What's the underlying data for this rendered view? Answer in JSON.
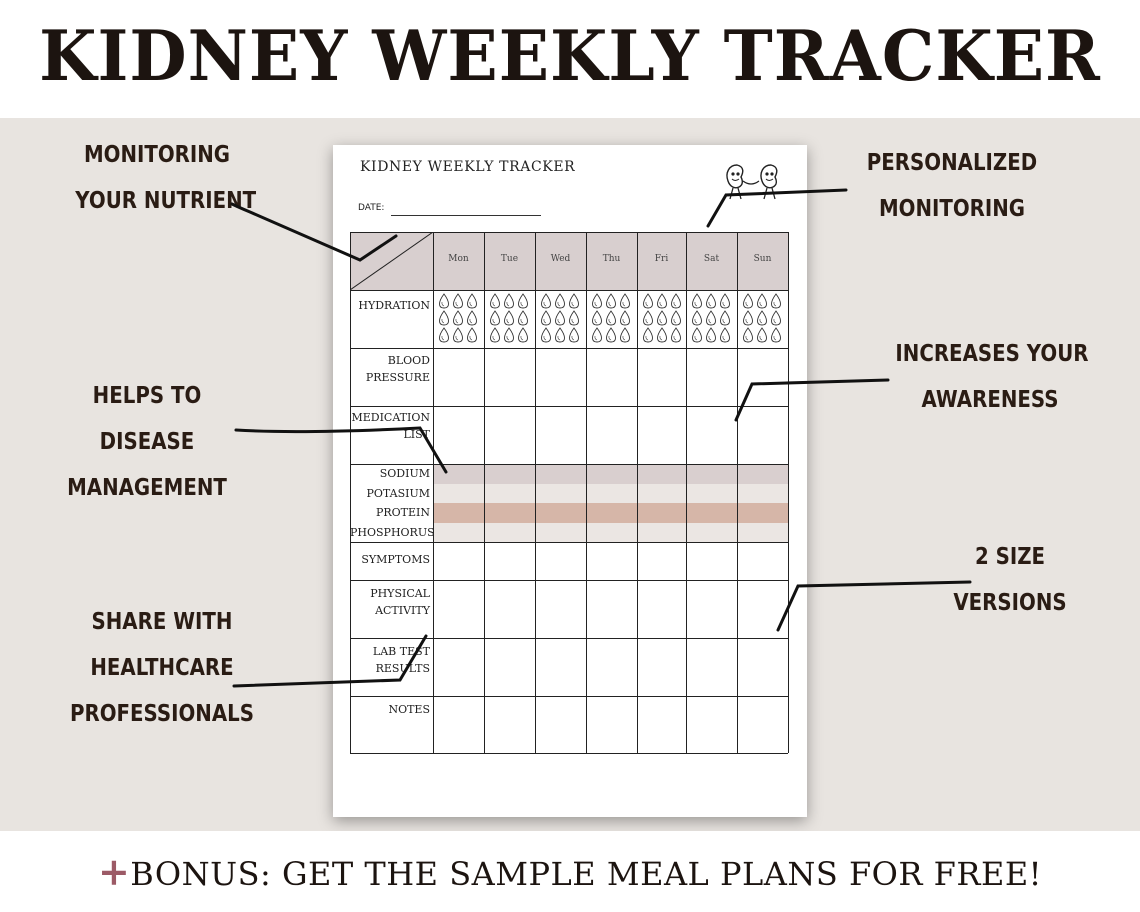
{
  "header": {
    "title": "KIDNEY WEEKLY TRACKER"
  },
  "callouts": {
    "monitoring_nutrient": [
      "MONITORING",
      "YOUR NUTRIENT"
    ],
    "personalized": [
      "PERSONALIZED",
      "MONITORING"
    ],
    "disease": [
      "HELPS TO",
      "DISEASE",
      "MANAGEMENT"
    ],
    "awareness": [
      "INCREASES YOUR",
      "AWARENESS"
    ],
    "share": [
      "SHARE WITH",
      "HEALTHCARE",
      "PROFESSIONALS"
    ],
    "sizes": [
      "2 SIZE",
      "VERSIONS"
    ]
  },
  "sheet": {
    "title": "KIDNEY WEEKLY TRACKER",
    "date_label": "DATE:",
    "days": [
      "Mon",
      "Tue",
      "Wed",
      "Thu",
      "Fri",
      "Sat",
      "Sun"
    ],
    "rows": {
      "hydration": "HYDRATION",
      "blood_pressure": [
        "BLOOD",
        "PRESSURE"
      ],
      "medication": [
        "MEDICATION",
        "LIST"
      ],
      "nutrients": [
        "SODIUM",
        "POTASIUM",
        "PROTEIN",
        "PHOSPHORUS"
      ],
      "symptoms": "SYMPTOMS",
      "activity": [
        "PHYSICAL",
        "ACTIVITY"
      ],
      "lab": [
        "LAB TEST",
        "RESULTS"
      ],
      "notes": "NOTES"
    },
    "stripe_colors": [
      "#d9cfcf",
      "#ebe6e3",
      "#d6b6a8",
      "#ebe6e3"
    ],
    "header_color": "#d8cfcf",
    "mascot": "kidney-mascot-icon"
  },
  "footer": {
    "plus": "+",
    "bonus": "BONUS: GET THE SAMPLE MEAL PLANS FOR FREE!"
  }
}
